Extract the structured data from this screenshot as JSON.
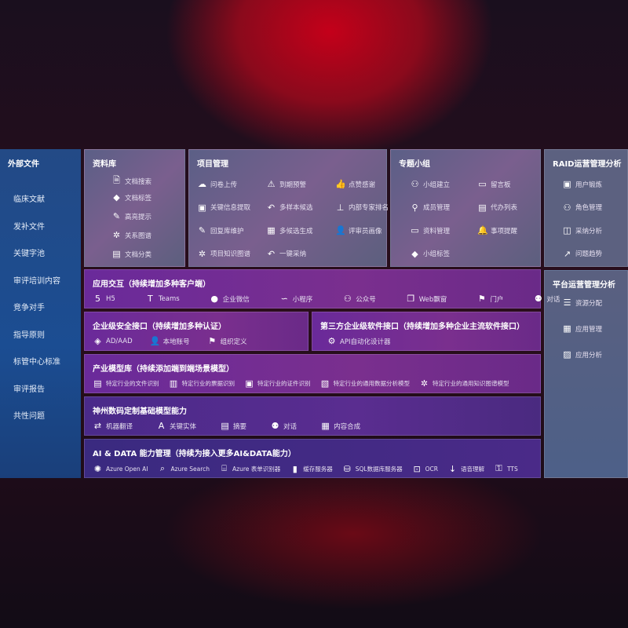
{
  "external": {
    "title": "外部文件",
    "items": [
      "临床文献",
      "发补文件",
      "关键字池",
      "审评培训内容",
      "竞争对手",
      "指导原则",
      "标管中心标准",
      "审评报告",
      "共性问题"
    ]
  },
  "library": {
    "title": "资料库",
    "items": [
      {
        "icon": "doc-search",
        "label": "文档搜索"
      },
      {
        "icon": "tag",
        "label": "文档标签"
      },
      {
        "icon": "pen",
        "label": "高亮提示"
      },
      {
        "icon": "graph",
        "label": "关系图谱"
      },
      {
        "icon": "doc-classify",
        "label": "文档分类"
      }
    ]
  },
  "project": {
    "title": "项目管理",
    "items": [
      {
        "icon": "cloud-upload",
        "label": "问卷上传"
      },
      {
        "icon": "alarm",
        "label": "到期预警"
      },
      {
        "icon": "thumbs-up",
        "label": "点赞感谢"
      },
      {
        "icon": "window",
        "label": "关键信息提取"
      },
      {
        "icon": "reply",
        "label": "多样本候选"
      },
      {
        "icon": "ranking",
        "label": "内部专家排名"
      },
      {
        "icon": "edit",
        "label": "回复库维护"
      },
      {
        "icon": "puzzle",
        "label": "多候选生成"
      },
      {
        "icon": "user",
        "label": "评审员画像"
      },
      {
        "icon": "graph",
        "label": "项目知识图谱"
      },
      {
        "icon": "reply",
        "label": "一键采纳"
      }
    ]
  },
  "group": {
    "title": "专题小组",
    "items": [
      {
        "icon": "users",
        "label": "小组建立"
      },
      {
        "icon": "bbs",
        "label": "留言板"
      },
      {
        "icon": "user-add",
        "label": "成员管理"
      },
      {
        "icon": "clipboard",
        "label": "代办列表"
      },
      {
        "icon": "folder",
        "label": "资料管理"
      },
      {
        "icon": "bell",
        "label": "事项提醒"
      },
      {
        "icon": "tag",
        "label": "小组标签"
      }
    ]
  },
  "raid": {
    "title": "RAID运营管理分析",
    "items": [
      {
        "icon": "id-card",
        "label": "用户锻炼"
      },
      {
        "icon": "users",
        "label": "角色管理"
      },
      {
        "icon": "qa",
        "label": "采纳分析"
      },
      {
        "icon": "trend",
        "label": "问题趋势"
      }
    ]
  },
  "platform": {
    "title": "平台运营管理分析",
    "items": [
      {
        "icon": "list",
        "label": "资源分配"
      },
      {
        "icon": "apps",
        "label": "应用管理"
      },
      {
        "icon": "chart",
        "label": "应用分析"
      }
    ]
  },
  "app": {
    "title": "应用交互（持续增加多种客户端）",
    "items": [
      {
        "icon": "html5",
        "label": "H5"
      },
      {
        "icon": "teams",
        "label": "Teams"
      },
      {
        "icon": "wechat",
        "label": "企业微信"
      },
      {
        "icon": "mini-program",
        "label": "小程序"
      },
      {
        "icon": "official-account",
        "label": "公众号"
      },
      {
        "icon": "web-window",
        "label": "Web飘窗"
      },
      {
        "icon": "portal",
        "label": "门户"
      },
      {
        "icon": "chat",
        "label": "对话"
      }
    ]
  },
  "security": {
    "title": "企业级安全接口（持续增加多种认证）",
    "items": [
      {
        "icon": "ad",
        "label": "AD/AAD"
      },
      {
        "icon": "local-account",
        "label": "本地账号"
      },
      {
        "icon": "org",
        "label": "组织定义"
      }
    ]
  },
  "thirdparty": {
    "title": "第三方企业级软件接口（持续增加多种企业主流软件接口）",
    "items": [
      {
        "icon": "gear",
        "label": "API自动化设计器"
      }
    ]
  },
  "industry": {
    "title": "产业模型库（持续添加端到端场景模型）",
    "items": [
      {
        "icon": "file",
        "label": "特定行业的文件识别"
      },
      {
        "icon": "receipt",
        "label": "特定行业的票据识别"
      },
      {
        "icon": "id-card",
        "label": "特定行业的证件识别"
      },
      {
        "icon": "image",
        "label": "特定行业的通用数据分析模型"
      },
      {
        "icon": "graph",
        "label": "特定行业的通用知识图谱模型"
      }
    ]
  },
  "base": {
    "title": "神州数码定制基础模型能力",
    "items": [
      {
        "icon": "translate",
        "label": "机器翻译"
      },
      {
        "icon": "entity",
        "label": "关键实体"
      },
      {
        "icon": "summary",
        "label": "摘要"
      },
      {
        "icon": "chat",
        "label": "对话"
      },
      {
        "icon": "puzzle",
        "label": "内容合成"
      }
    ]
  },
  "ai": {
    "title": "AI & DATA 能力管理（持续为接入更多AI&DATA能力）",
    "items": [
      {
        "icon": "openai",
        "label": "Azure Open AI"
      },
      {
        "icon": "search",
        "label": "Azure Search"
      },
      {
        "icon": "form",
        "label": "Azure 表单识别器"
      },
      {
        "icon": "cache",
        "label": "缓存服务器"
      },
      {
        "icon": "sql",
        "label": "SQL数据库服务器"
      },
      {
        "icon": "ocr",
        "label": "OCR"
      },
      {
        "icon": "speech",
        "label": "语音理解"
      },
      {
        "icon": "tts",
        "label": "TTS"
      }
    ]
  }
}
